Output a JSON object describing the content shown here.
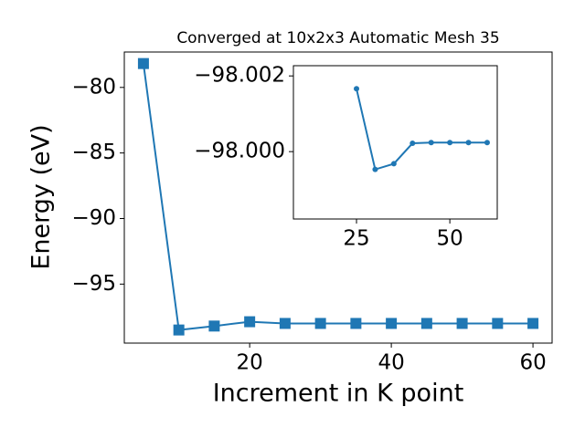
{
  "chart_data": [
    {
      "type": "line",
      "title": "Converged at 10x2x3 Automatic Mesh 35",
      "xlabel": "Increment in K point",
      "ylabel": "Energy (eV)",
      "x": [
        5,
        10,
        15,
        20,
        25,
        30,
        35,
        40,
        45,
        50,
        55,
        60
      ],
      "series": [
        {
          "color": "#1f77b4",
          "marker": "square",
          "values": [
            -78.18,
            -98.5,
            -98.2,
            -97.87,
            -98.0,
            -98.0,
            -98.0,
            -98.0,
            -98.0,
            -98.0,
            -98.0,
            -98.0
          ]
        }
      ],
      "xlim": [
        2.3,
        62.7
      ],
      "xticks": [
        20,
        40,
        60
      ],
      "ylim": [
        -99.5,
        -77.3
      ],
      "yticks": [
        {
          "value": -80,
          "label": "−80"
        },
        {
          "value": -85,
          "label": "−85"
        },
        {
          "value": -90,
          "label": "−90"
        },
        {
          "value": -95,
          "label": "−95"
        }
      ]
    },
    {
      "type": "line",
      "x": [
        25,
        30,
        35,
        40,
        45,
        50,
        55,
        60
      ],
      "series": [
        {
          "color": "#1f77b4",
          "marker": "circle",
          "values": [
            -98.00166,
            -97.99953,
            -97.99968,
            -98.00022,
            -98.00024,
            -98.00024,
            -98.00024,
            -98.00024
          ]
        }
      ],
      "xlim": [
        8.1,
        62.7
      ],
      "xticks": [
        25,
        50
      ],
      "ylim": [
        -97.99822,
        -98.00227
      ],
      "yticks": [
        {
          "value": -98.002,
          "label": "−98.002"
        },
        {
          "value": -98.0,
          "label": "−98.000"
        }
      ]
    }
  ]
}
